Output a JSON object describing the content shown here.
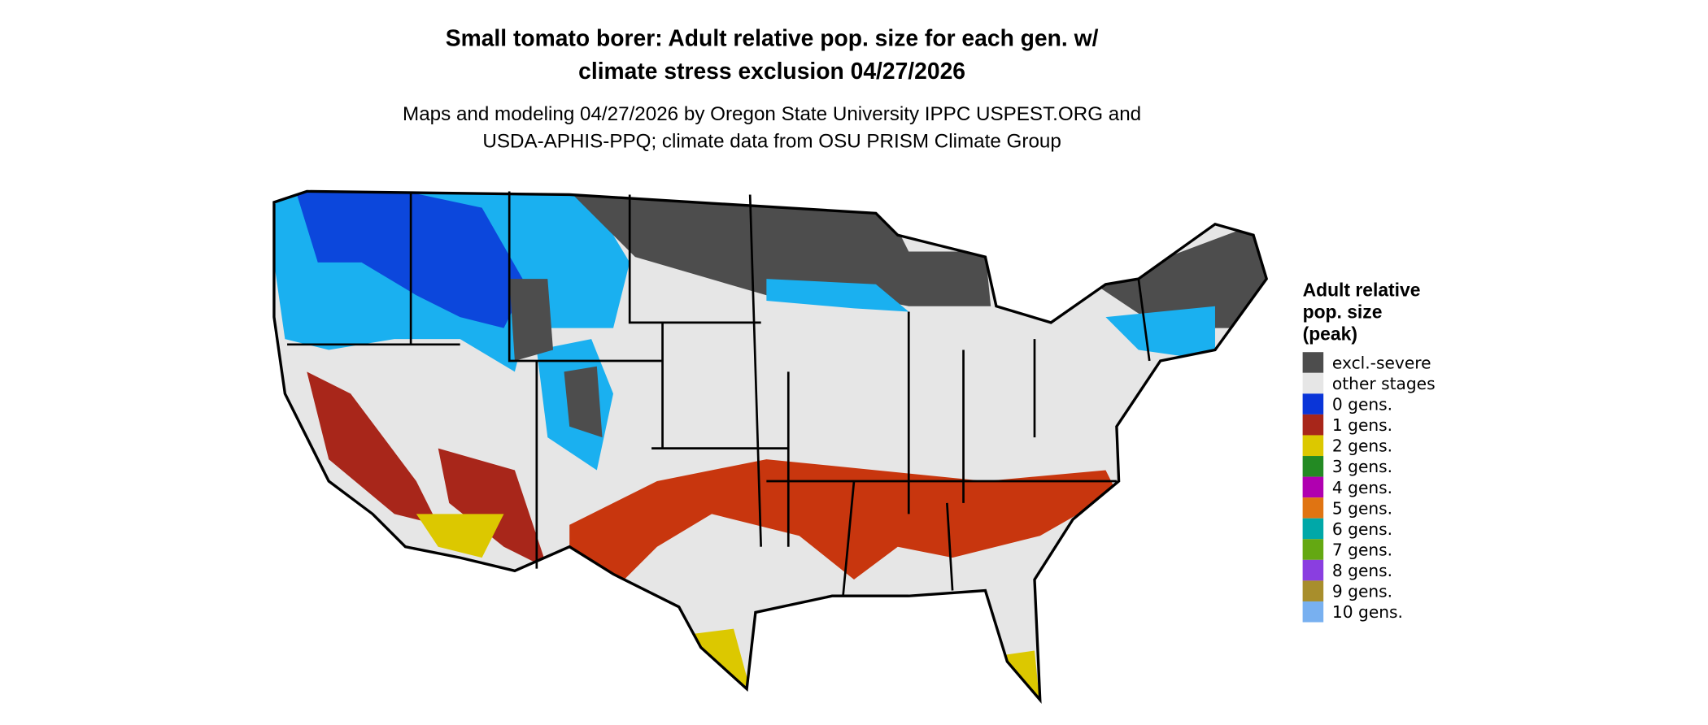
{
  "header": {
    "title": [
      "Small tomato borer: Adult relative pop. size for each gen. w/",
      "climate stress exclusion 04/27/2026"
    ],
    "subtitle": [
      "Maps and modeling 04/27/2026 by Oregon State University IPPC USPEST.ORG and",
      "USDA-APHIS-PPQ; climate data from OSU PRISM Climate Group"
    ]
  },
  "legend": {
    "title": [
      "Adult relative",
      "pop. size",
      "(peak)"
    ],
    "items": [
      {
        "label": "excl.-severe",
        "color": "#4d4d4d"
      },
      {
        "label": "other stages",
        "color": "#e6e6e6"
      },
      {
        "label": "0 gens.",
        "color": "#0a35d8"
      },
      {
        "label": "1 gens.",
        "color": "#a8261a"
      },
      {
        "label": "2 gens.",
        "color": "#dcc800"
      },
      {
        "label": "3 gens.",
        "color": "#238a23"
      },
      {
        "label": "4 gens.",
        "color": "#b000b0"
      },
      {
        "label": "5 gens.",
        "color": "#e07412"
      },
      {
        "label": "6 gens.",
        "color": "#00a8a8"
      },
      {
        "label": "7 gens.",
        "color": "#64a812"
      },
      {
        "label": "8 gens.",
        "color": "#8a3ee0"
      },
      {
        "label": "9 gens.",
        "color": "#a88e2c"
      },
      {
        "label": "10 gens.",
        "color": "#78b0f0"
      }
    ]
  }
}
